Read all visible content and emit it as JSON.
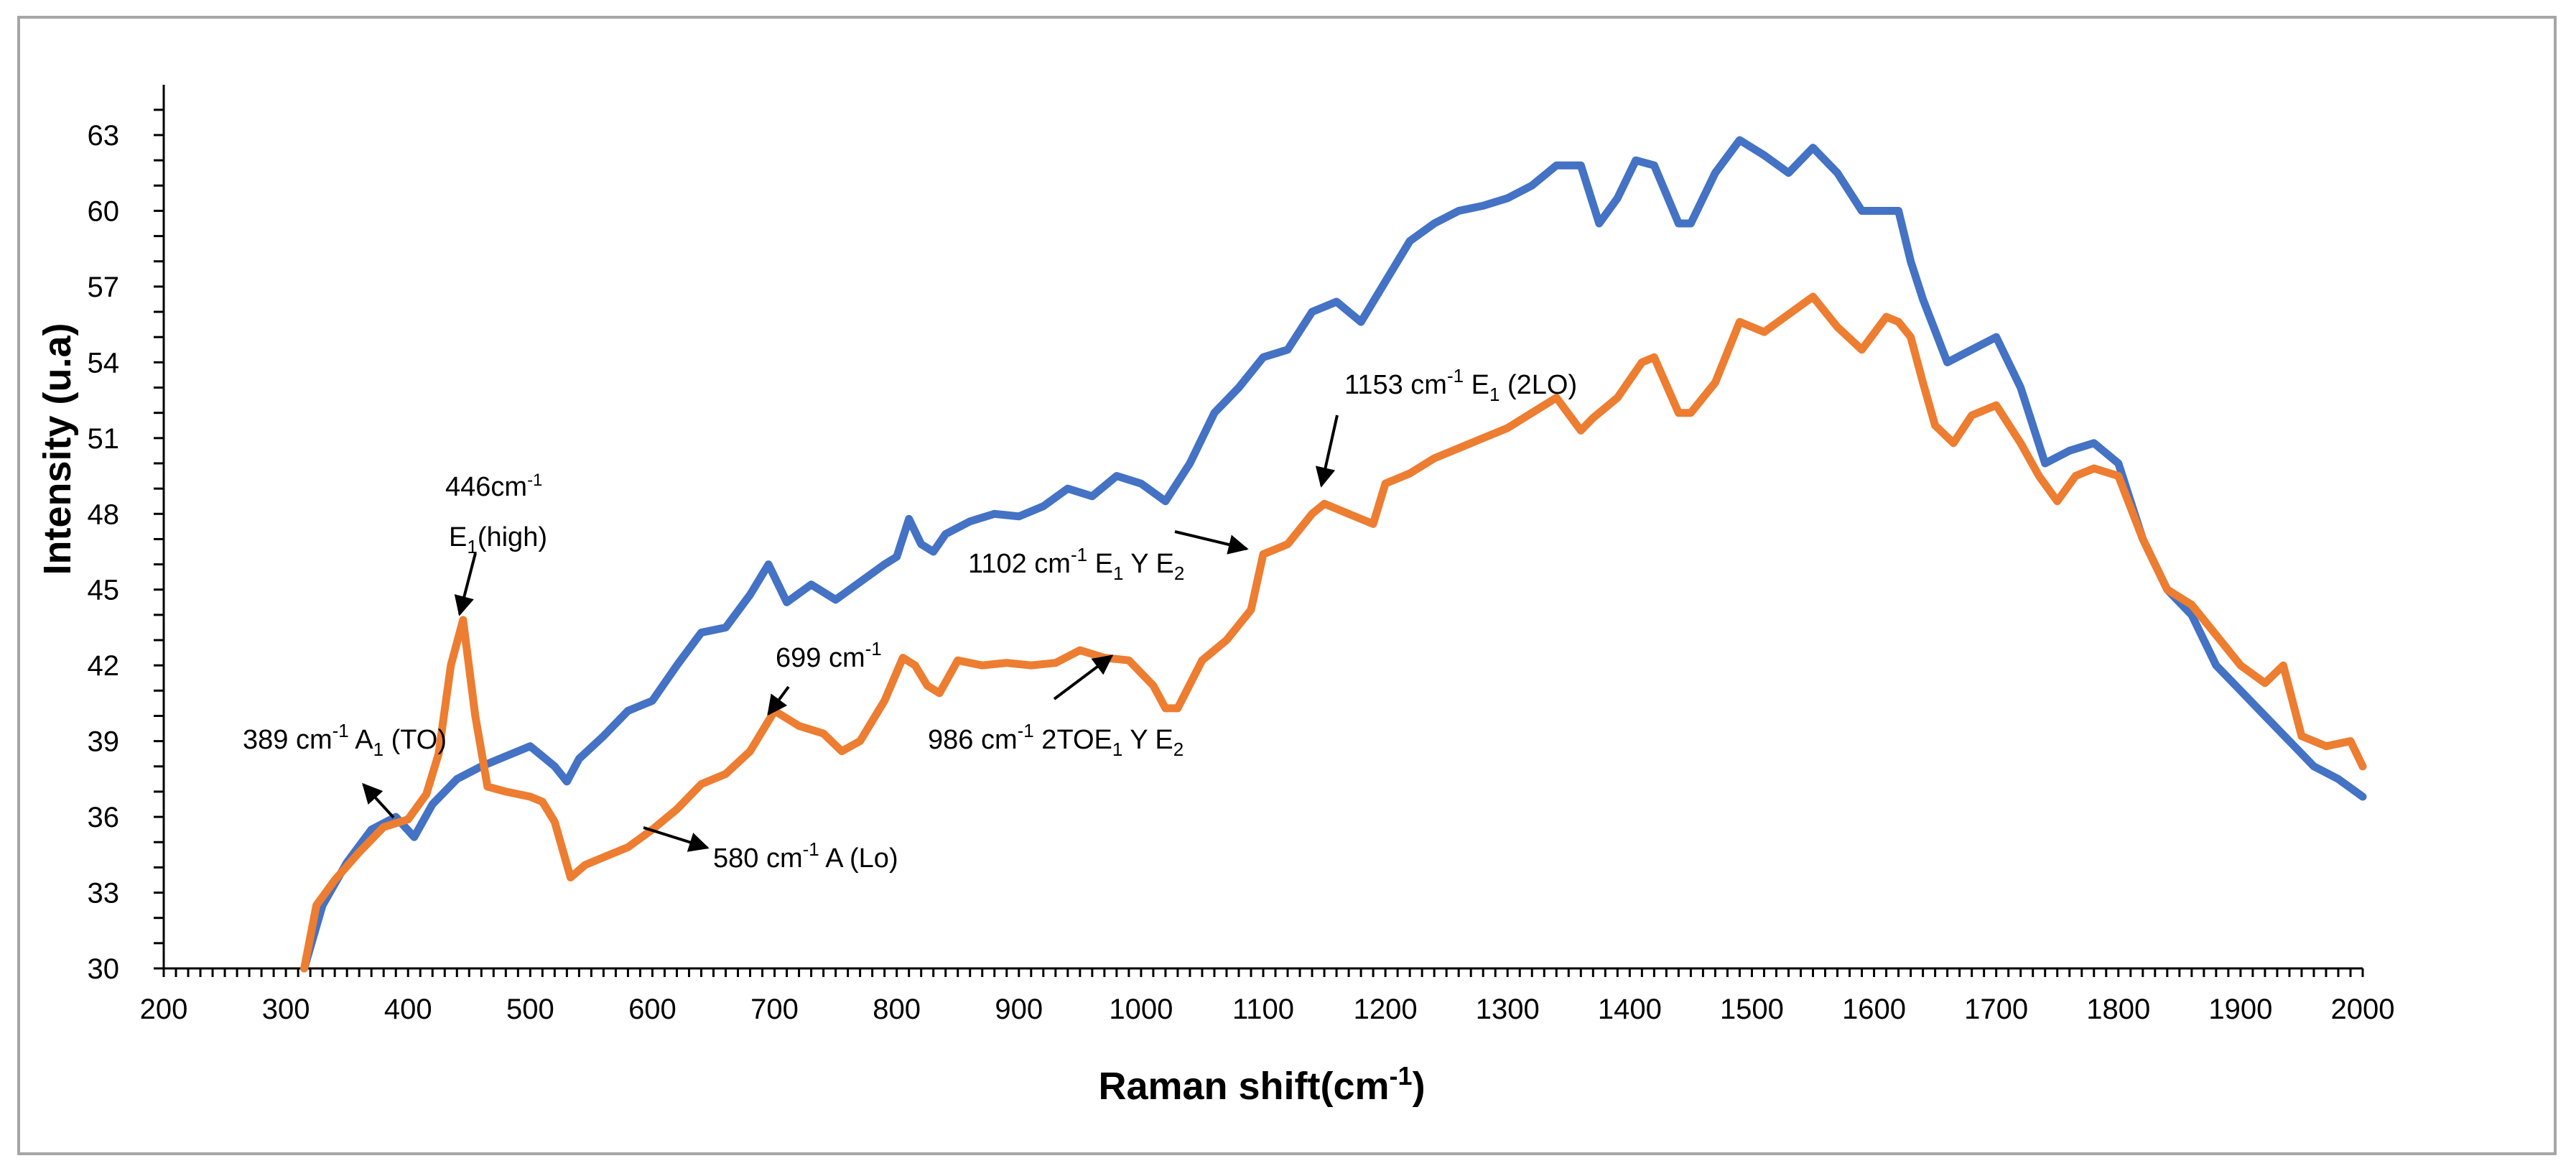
{
  "chart_data": {
    "type": "line",
    "title": "",
    "xlabel": "Raman shift(cm",
    "xlabel_sup": "-1",
    "xlabel_end": ")",
    "ylabel": "Intensity (u.a)",
    "xlim": [
      200,
      2000
    ],
    "ylim": [
      30,
      65
    ],
    "x_ticks": [
      "200",
      "300",
      "400",
      "500",
      "600",
      "700",
      "800",
      "900",
      "1000",
      "1100",
      "1200",
      "1300",
      "1400",
      "1500",
      "1600",
      "1700",
      "1800",
      "1900",
      "2000"
    ],
    "y_ticks": [
      "30",
      "33",
      "36",
      "39",
      "42",
      "45",
      "48",
      "51",
      "54",
      "57",
      "60",
      "63"
    ],
    "legend": "none",
    "series": [
      {
        "name": "blue",
        "color": "#4472c4",
        "x": [
          315,
          330,
          350,
          370,
          390,
          405,
          420,
          440,
          460,
          480,
          500,
          520,
          530,
          540,
          560,
          580,
          600,
          620,
          640,
          660,
          680,
          695,
          710,
          730,
          750,
          770,
          790,
          800,
          810,
          820,
          830,
          840,
          860,
          880,
          900,
          920,
          940,
          960,
          980,
          1000,
          1020,
          1040,
          1060,
          1080,
          1100,
          1120,
          1140,
          1160,
          1180,
          1200,
          1220,
          1240,
          1260,
          1280,
          1300,
          1320,
          1340,
          1360,
          1375,
          1390,
          1405,
          1420,
          1440,
          1450,
          1470,
          1490,
          1510,
          1530,
          1550,
          1570,
          1590,
          1610,
          1620,
          1630,
          1640,
          1660,
          1680,
          1700,
          1720,
          1740,
          1760,
          1780,
          1800,
          1820,
          1840,
          1860,
          1880,
          1900,
          1920,
          1940,
          1960,
          1980,
          2000
        ],
        "y": [
          30,
          32.5,
          34.2,
          35.5,
          36,
          35.2,
          36.5,
          37.5,
          38,
          38.4,
          38.8,
          38,
          37.4,
          38.3,
          39.2,
          40.2,
          40.6,
          42,
          43.3,
          43.5,
          44.8,
          46,
          44.5,
          45.2,
          44.6,
          45.3,
          46,
          46.3,
          47.8,
          46.8,
          46.5,
          47.2,
          47.7,
          48,
          47.9,
          48.3,
          49,
          48.7,
          49.5,
          49.2,
          48.5,
          50,
          52,
          53,
          54.2,
          54.5,
          56,
          56.4,
          55.6,
          57.2,
          58.8,
          59.5,
          60,
          60.2,
          60.5,
          61,
          61.8,
          61.8,
          59.5,
          60.5,
          62,
          61.8,
          59.5,
          59.5,
          61.5,
          62.8,
          62.2,
          61.5,
          62.5,
          61.5,
          60,
          60,
          60,
          58,
          56.5,
          54,
          54.5,
          55,
          53,
          50,
          50.5,
          50.8,
          50,
          47,
          45,
          44,
          42,
          41,
          40,
          39,
          38,
          37.5,
          36.8
        ]
      },
      {
        "name": "orange",
        "color": "#ed7d31",
        "x": [
          315,
          325,
          340,
          360,
          380,
          400,
          415,
          425,
          435,
          445,
          455,
          465,
          480,
          500,
          510,
          520,
          533,
          545,
          560,
          580,
          600,
          620,
          640,
          660,
          680,
          700,
          720,
          740,
          755,
          770,
          790,
          805,
          815,
          825,
          835,
          850,
          870,
          890,
          910,
          930,
          950,
          970,
          990,
          1010,
          1020,
          1030,
          1050,
          1070,
          1090,
          1100,
          1120,
          1140,
          1150,
          1170,
          1190,
          1200,
          1220,
          1240,
          1260,
          1280,
          1300,
          1320,
          1340,
          1360,
          1370,
          1390,
          1410,
          1420,
          1440,
          1450,
          1470,
          1490,
          1510,
          1530,
          1550,
          1570,
          1590,
          1610,
          1620,
          1630,
          1640,
          1650,
          1665,
          1680,
          1700,
          1720,
          1735,
          1750,
          1765,
          1780,
          1800,
          1820,
          1840,
          1860,
          1880,
          1900,
          1920,
          1935,
          1950,
          1970,
          1990,
          2000
        ],
        "y": [
          30,
          32.5,
          33.5,
          34.6,
          35.6,
          35.9,
          36.9,
          38.5,
          42,
          43.8,
          40,
          37.2,
          37,
          36.8,
          36.6,
          35.8,
          33.6,
          34.1,
          34.4,
          34.8,
          35.5,
          36.3,
          37.3,
          37.7,
          38.6,
          40.2,
          39.6,
          39.3,
          38.6,
          39,
          40.6,
          42.3,
          42,
          41.2,
          40.9,
          42.2,
          42,
          42.1,
          42,
          42.1,
          42.6,
          42.3,
          42.2,
          41.2,
          40.3,
          40.3,
          42.2,
          43,
          44.2,
          46.4,
          46.8,
          48,
          48.4,
          48,
          47.6,
          49.2,
          49.6,
          50.2,
          50.6,
          51,
          51.4,
          52,
          52.6,
          51.3,
          51.8,
          52.6,
          54,
          54.2,
          52,
          52,
          53.2,
          55.6,
          55.2,
          55.9,
          56.6,
          55.4,
          54.5,
          55.8,
          55.6,
          55,
          53.2,
          51.5,
          50.8,
          51.9,
          52.3,
          50.8,
          49.5,
          48.5,
          49.5,
          49.8,
          49.5,
          47,
          45,
          44.4,
          43.2,
          42,
          41.3,
          42,
          39.2,
          38.8,
          39,
          38
        ]
      }
    ],
    "annotations": [
      {
        "text": "389 cm",
        "sup": "-1",
        "sub_text": " A",
        "sub": "1",
        "end": " (TO)"
      },
      {
        "text": "446cm",
        "sup": "-1"
      },
      {
        "text": "E",
        "sub": "1",
        "end": "(high)"
      },
      {
        "text": "580 cm",
        "sup": "-1",
        "end": " A (Lo)"
      },
      {
        "text": "699 cm",
        "sup": "-1"
      },
      {
        "text": "986 cm",
        "sup": "-1",
        "end": " 2TOE",
        "sub": "1",
        "end2": " Y E",
        "sub2": "2"
      },
      {
        "text": "1102  cm",
        "sup": "-1",
        "end": " E",
        "sub": "1",
        "end2": " Y E",
        "sub2": "2"
      },
      {
        "text": "1153 cm",
        "sup": "-1",
        "end": " E",
        "sub": "1",
        "end2": " (2LO)"
      }
    ]
  }
}
